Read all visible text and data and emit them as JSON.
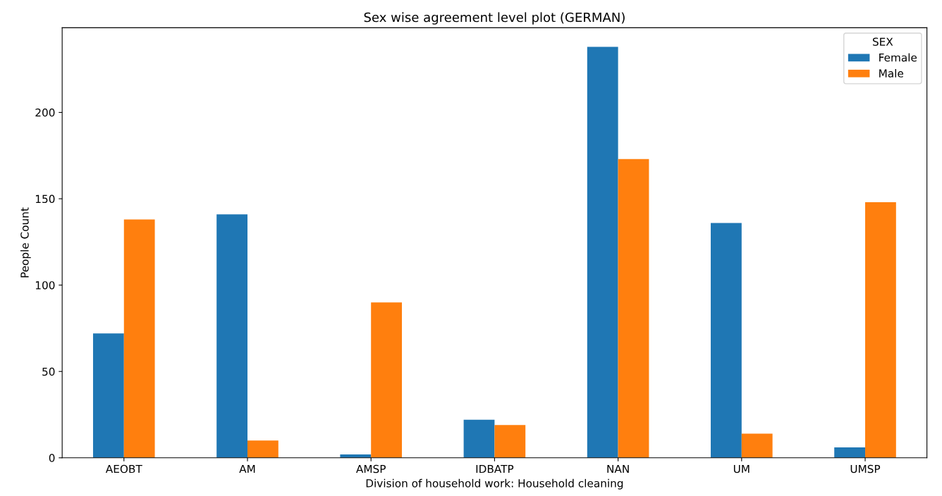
{
  "chart_data": {
    "type": "bar",
    "title": "Sex wise agreement level plot (GERMAN)",
    "xlabel": "Division of household work: Household cleaning",
    "ylabel": "People Count",
    "categories": [
      "AEOBT",
      "AM",
      "AMSP",
      "IDBATP",
      "NAN",
      "UM",
      "UMSP"
    ],
    "series": [
      {
        "name": "Female",
        "color": "#1f77b4",
        "values": [
          72,
          141,
          2,
          22,
          238,
          136,
          6
        ]
      },
      {
        "name": "Male",
        "color": "#ff7f0e",
        "values": [
          138,
          10,
          90,
          19,
          173,
          14,
          148
        ]
      }
    ],
    "legend_title": "SEX",
    "legend": "top right",
    "grid": false,
    "ylim": [
      0,
      249
    ],
    "yticks": [
      0,
      50,
      100,
      150,
      200
    ]
  }
}
